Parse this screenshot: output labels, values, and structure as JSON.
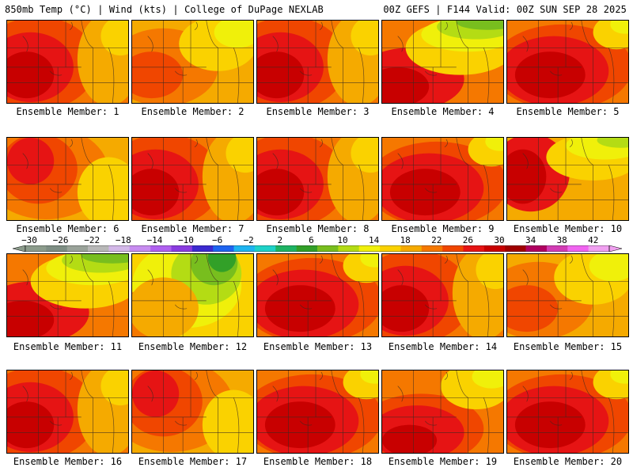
{
  "header": {
    "left": "850mb Temp (°C) | Wind (kts) | College of DuPage NEXLAB",
    "right": "00Z GEFS | F144 Valid: 00Z SUN SEP 28 2025"
  },
  "panels": [
    {
      "label": "Ensemble Member: 1",
      "style": "hot-west"
    },
    {
      "label": "Ensemble Member: 2",
      "style": "mild"
    },
    {
      "label": "Ensemble Member: 3",
      "style": "hot-west"
    },
    {
      "label": "Ensemble Member: 4",
      "style": "cool-north"
    },
    {
      "label": "Ensemble Member: 5",
      "style": "hot-center"
    },
    {
      "label": "Ensemble Member: 6",
      "style": "mild-west"
    },
    {
      "label": "Ensemble Member: 7",
      "style": "hot-west"
    },
    {
      "label": "Ensemble Member: 8",
      "style": "hot-west"
    },
    {
      "label": "Ensemble Member: 9",
      "style": "hot-center"
    },
    {
      "label": "Ensemble Member: 10",
      "style": "cool-ne"
    },
    {
      "label": "Ensemble Member: 11",
      "style": "cool-north"
    },
    {
      "label": "Ensemble Member: 12",
      "style": "cold-east"
    },
    {
      "label": "Ensemble Member: 13",
      "style": "hot-center"
    },
    {
      "label": "Ensemble Member: 14",
      "style": "hot-west"
    },
    {
      "label": "Ensemble Member: 15",
      "style": "mild"
    },
    {
      "label": "Ensemble Member: 16",
      "style": "hot-west"
    },
    {
      "label": "Ensemble Member: 17",
      "style": "mild-west"
    },
    {
      "label": "Ensemble Member: 18",
      "style": "hot-center"
    },
    {
      "label": "Ensemble Member: 19",
      "style": "hot-sw"
    },
    {
      "label": "Ensemble Member: 20",
      "style": "hot-center"
    }
  ],
  "colorbar": {
    "labels": [
      "−30",
      "−26",
      "−22",
      "−18",
      "−14",
      "−10",
      "−6",
      "−2",
      "2",
      "6",
      "10",
      "14",
      "18",
      "22",
      "26",
      "30",
      "34",
      "38",
      "42"
    ],
    "colors": [
      "#8c9c8c",
      "#7e8e84",
      "#9aa39a",
      "#b8b8b8",
      "#d3b8e8",
      "#c78cf0",
      "#b060f0",
      "#8a3ce0",
      "#3c2ad0",
      "#1e64f0",
      "#1eb4f0",
      "#1ed2c8",
      "#1eb464",
      "#32a028",
      "#78be1e",
      "#b4dc14",
      "#f0f00a",
      "#fad200",
      "#f5aa00",
      "#f57800",
      "#f04600",
      "#e61414",
      "#c80000",
      "#a00000",
      "#b00060",
      "#d23cb4",
      "#f064f0",
      "#f0a0f0"
    ]
  },
  "palette": {
    "darkred": "#c80000",
    "red": "#e61414",
    "redorange": "#f04600",
    "orange": "#f57800",
    "lightorange": "#f5aa00",
    "gold": "#fad200",
    "yellow": "#f0f00a",
    "lime": "#b4dc14",
    "green": "#78be1e",
    "darkgreen": "#32a028"
  }
}
